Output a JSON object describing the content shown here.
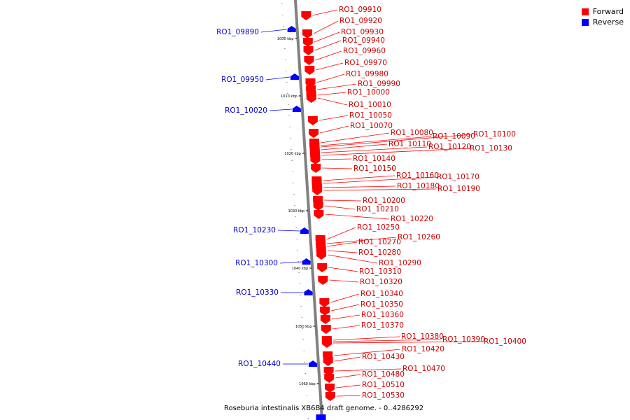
{
  "colors": {
    "forward": "#ff0000",
    "reverse": "#0000ff",
    "axis": "#808080"
  },
  "legend": [
    {
      "label": "Forward",
      "color": "#ff0000"
    },
    {
      "label": "Reverse",
      "color": "#0000ff"
    }
  ],
  "caption": "Roseburia intestinalis XB6B4 draft genome. - 0..4286292",
  "scale_labels": [
    "1000 kbp",
    "1010 kbp",
    "1020 kbp",
    "1030 kbp",
    "1040 kbp",
    "1050 kbp",
    "1060 kbp"
  ],
  "forward_genes": [
    "RO1_09910",
    "RO1_09920",
    "RO1_09930",
    "RO1_09940",
    "RO1_09960",
    "RO1_09970",
    "RO1_09980",
    "RO1_09990",
    "RO1_10000",
    "RO1_10010",
    "RO1_10050",
    "RO1_10070",
    "RO1_10080",
    "RO1_10090",
    "RO1_10100",
    "RO1_10110",
    "RO1_10120",
    "RO1_10130",
    "RO1_10140",
    "RO1_10150",
    "RO1_10160",
    "RO1_10170",
    "RO1_10180",
    "RO1_10190",
    "RO1_10200",
    "RO1_10210",
    "RO1_10220",
    "RO1_10250",
    "RO1_10260",
    "RO1_10270",
    "RO1_10280",
    "RO1_10290",
    "RO1_10310",
    "RO1_10320",
    "RO1_10340",
    "RO1_10350",
    "RO1_10360",
    "RO1_10370",
    "RO1_10380",
    "RO1_10390",
    "RO1_10400",
    "RO1_10420",
    "RO1_10430",
    "RO1_10470",
    "RO1_10480",
    "RO1_10510",
    "RO1_10530"
  ],
  "reverse_genes": [
    "RO1_09890",
    "RO1_09950",
    "RO1_10020",
    "RO1_10230",
    "RO1_10300",
    "RO1_10330",
    "RO1_10440"
  ]
}
